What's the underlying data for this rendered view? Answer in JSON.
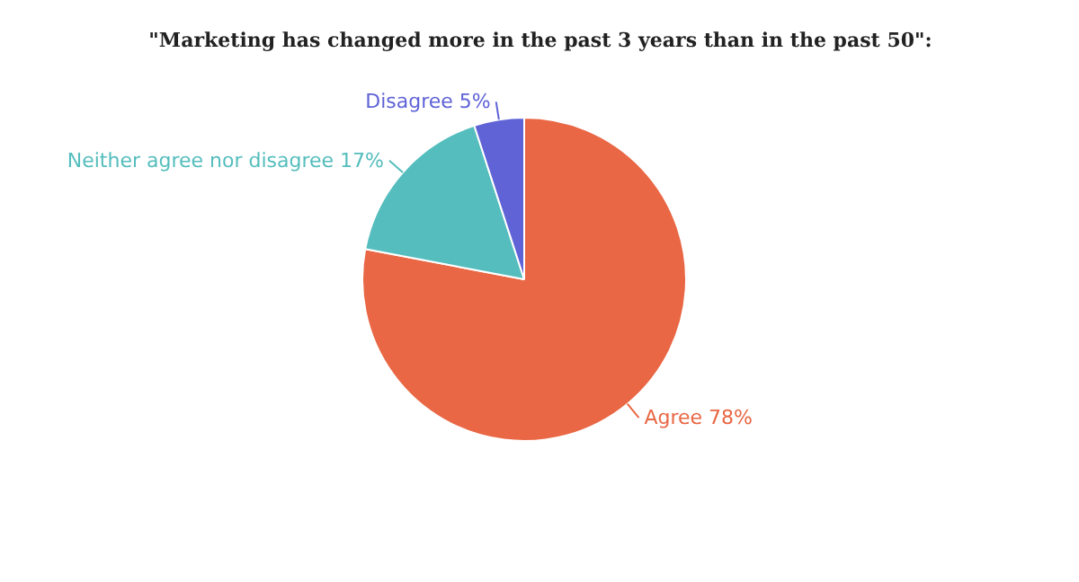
{
  "chart_data": {
    "type": "pie",
    "title": "\"Marketing has changed more in the past 3 years than in the past 50\":",
    "categories": [
      "Agree",
      "Neither agree nor disagree",
      "Disagree"
    ],
    "values": [
      78,
      17,
      5
    ],
    "value_labels": [
      "78%",
      "17%",
      "5%"
    ],
    "colors": [
      "#e96744",
      "#55bdbd",
      "#5f63d6"
    ]
  }
}
